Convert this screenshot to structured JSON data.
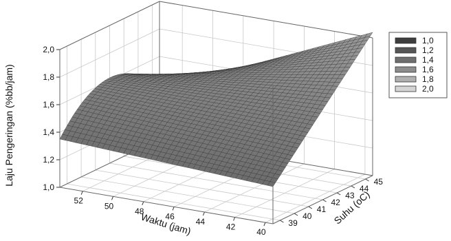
{
  "chart_data": {
    "type": "surface",
    "xlabel": "Waktu (jam)",
    "ylabel": "Suhu (oC)",
    "zlabel": "Laju Pengeringan (%bb/jam)",
    "x_ticks": [
      "52",
      "50",
      "48",
      "46",
      "44",
      "42",
      "40"
    ],
    "y_ticks": [
      "39",
      "40",
      "41",
      "42",
      "43",
      "44",
      "45"
    ],
    "z_ticks": [
      "1,0",
      "1,2",
      "1,4",
      "1,6",
      "1,8",
      "2,0"
    ],
    "xlim": [
      53.5,
      39.5
    ],
    "ylim": [
      38.5,
      45.5
    ],
    "zlim": [
      1.0,
      2.0
    ],
    "grid": true,
    "legend_position": "right",
    "legend": [
      {
        "label": "1,0",
        "color": "#3d3d3d"
      },
      {
        "label": "1,2",
        "color": "#555555"
      },
      {
        "label": "1,4",
        "color": "#6f6f6f"
      },
      {
        "label": "1,6",
        "color": "#8c8c8c"
      },
      {
        "label": "1,8",
        "color": "#b0b0b0"
      },
      {
        "label": "2,0",
        "color": "#d4d4d4"
      }
    ],
    "surface": {
      "x": [
        53.5,
        39.5
      ],
      "y": [
        38.5,
        45.5
      ],
      "z_corners": {
        "x53.5_y38.5": 1.35,
        "x39.5_y38.5": 1.27,
        "x53.5_y45.5": 1.36,
        "x39.5_y45.5": 2.04
      },
      "z_mid_far_edge": 1.62,
      "grid_resolution": 40,
      "color": "#8a8a8a"
    }
  }
}
